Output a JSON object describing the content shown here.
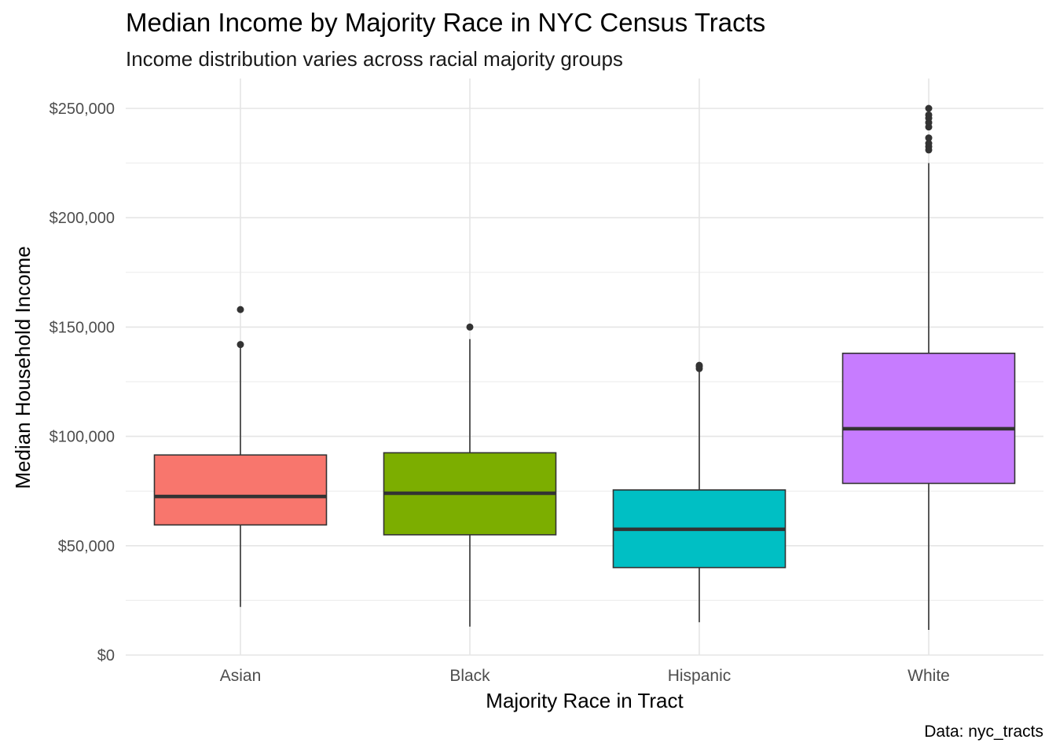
{
  "chart_data": {
    "type": "box",
    "title": "Median Income by Majority Race in NYC Census Tracts",
    "subtitle": "Income distribution varies across racial majority groups",
    "xlabel": "Majority Race in Tract",
    "ylabel": "Median Household Income",
    "caption": "Data: nyc_tracts",
    "ylim": [
      0,
      265000
    ],
    "y_ticks": [
      0,
      50000,
      100000,
      150000,
      200000,
      250000
    ],
    "y_tick_labels": [
      "$0",
      "$50,000",
      "$100,000",
      "$150,000",
      "$200,000",
      "$250,000"
    ],
    "grid": true,
    "legend": "none",
    "categories": [
      "Asian",
      "Black",
      "Hispanic",
      "White"
    ],
    "boxes": [
      {
        "name": "Asian",
        "color": "#F8766D",
        "whisker_low": 22000,
        "q1": 59500,
        "median": 72500,
        "q3": 91500,
        "whisker_high": 140500,
        "outliers": [
          142000,
          158000
        ]
      },
      {
        "name": "Black",
        "color": "#7CAE00",
        "whisker_low": 13000,
        "q1": 55000,
        "median": 74000,
        "q3": 92500,
        "whisker_high": 144500,
        "outliers": [
          150000
        ]
      },
      {
        "name": "Hispanic",
        "color": "#00BFC4",
        "whisker_low": 15000,
        "q1": 40000,
        "median": 57500,
        "q3": 75500,
        "whisker_high": 130000,
        "outliers": [
          131000,
          132000,
          132500
        ]
      },
      {
        "name": "White",
        "color": "#C77CFF",
        "whisker_low": 11500,
        "q1": 78500,
        "median": 103500,
        "q3": 138000,
        "whisker_high": 225000,
        "outliers": [
          231000,
          232500,
          234000,
          236500,
          241500,
          243500,
          245500,
          247000,
          250000
        ]
      }
    ]
  }
}
